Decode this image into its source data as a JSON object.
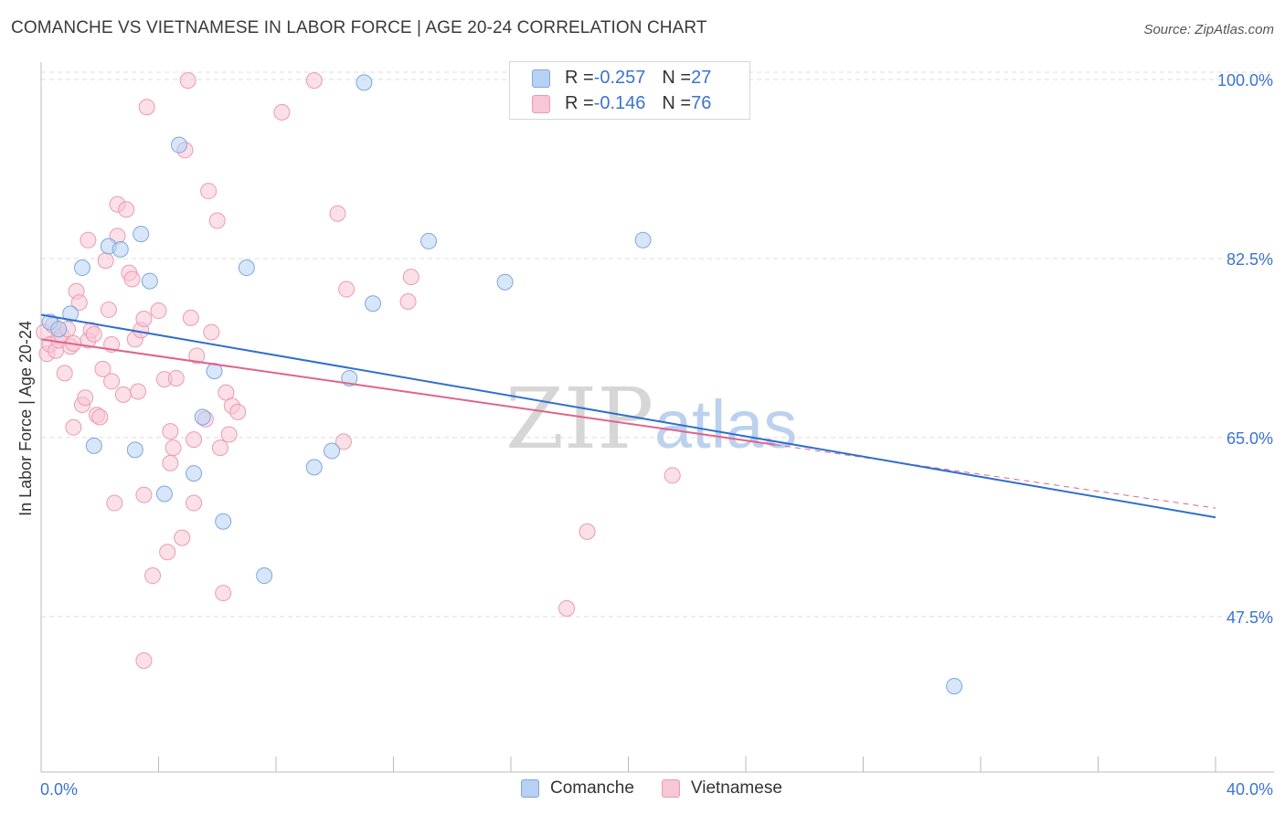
{
  "title": "COMANCHE VS VIETNAMESE IN LABOR FORCE | AGE 20-24 CORRELATION CHART",
  "source": "Source: ZipAtlas.com",
  "watermark": {
    "zip": "ZIP",
    "atlas": "atlas"
  },
  "colors": {
    "comanche_fill": "#b7d1f3",
    "comanche_stroke": "#7da7de",
    "comanche_line": "#2f6fce",
    "vietnamese_fill": "#f7c7d6",
    "vietnamese_stroke": "#eb9ab3",
    "vietnamese_line": "#e0638c",
    "axis_label": "#3a74d0",
    "grid": "#dcdcdc"
  },
  "legend_top": [
    {
      "r_label": "R = ",
      "r_value": "-0.257",
      "n_label": "N = ",
      "n_value": "27"
    },
    {
      "r_label": "R = ",
      "r_value": "-0.146",
      "n_label": "N = ",
      "n_value": "76"
    }
  ],
  "legend_bottom": [
    "Comanche",
    "Vietnamese"
  ],
  "chart_data": {
    "type": "scatter",
    "title": "COMANCHE VS VIETNAMESE IN LABOR FORCE | AGE 20-24 CORRELATION CHART",
    "xlabel": "",
    "ylabel": "In Labor Force | Age 20-24",
    "xlim": [
      0,
      40
    ],
    "ylim": [
      32.3,
      101.7
    ],
    "x_tick_labels": [
      "0.0%",
      "40.0%"
    ],
    "y_ticks": [
      47.5,
      65.0,
      82.5,
      100.0
    ],
    "y_tick_labels": [
      "47.5%",
      "65.0%",
      "82.5%",
      "100.0%"
    ],
    "grid": true,
    "legend_position": "top-center",
    "series": [
      {
        "name": "Comanche",
        "R": -0.257,
        "N": 27,
        "trend": {
          "x": [
            0,
            40
          ],
          "y": [
            77.0,
            57.2
          ]
        },
        "points": [
          [
            0.3,
            76.3
          ],
          [
            0.6,
            75.6
          ],
          [
            1.0,
            77.1
          ],
          [
            1.4,
            81.6
          ],
          [
            1.8,
            64.2
          ],
          [
            2.3,
            83.7
          ],
          [
            2.7,
            83.4
          ],
          [
            3.2,
            63.8
          ],
          [
            3.4,
            84.9
          ],
          [
            3.7,
            80.3
          ],
          [
            4.2,
            59.5
          ],
          [
            4.7,
            93.6
          ],
          [
            5.2,
            61.5
          ],
          [
            5.5,
            67.0
          ],
          [
            5.9,
            71.5
          ],
          [
            6.2,
            56.8
          ],
          [
            7.0,
            81.6
          ],
          [
            7.6,
            51.5
          ],
          [
            9.3,
            62.1
          ],
          [
            9.9,
            63.7
          ],
          [
            10.5,
            70.8
          ],
          [
            11.0,
            99.7
          ],
          [
            11.3,
            78.1
          ],
          [
            13.2,
            84.2
          ],
          [
            15.8,
            80.2
          ],
          [
            20.5,
            84.3
          ],
          [
            31.1,
            40.7
          ]
        ]
      },
      {
        "name": "Vietnamese",
        "R": -0.146,
        "N": 76,
        "trend": {
          "x": [
            0,
            25
          ],
          "y": [
            74.6,
            64.3
          ]
        },
        "trend_dashed": {
          "x": [
            25,
            40
          ],
          "y": [
            64.3,
            58.1
          ]
        },
        "points": [
          [
            0.1,
            75.3
          ],
          [
            0.2,
            73.2
          ],
          [
            0.3,
            74.1
          ],
          [
            0.4,
            76.0
          ],
          [
            0.5,
            73.5
          ],
          [
            0.6,
            74.5
          ],
          [
            0.7,
            75.0
          ],
          [
            0.8,
            71.3
          ],
          [
            0.9,
            75.6
          ],
          [
            1.0,
            73.9
          ],
          [
            1.1,
            74.2
          ],
          [
            1.1,
            66.0
          ],
          [
            1.2,
            79.3
          ],
          [
            1.3,
            78.2
          ],
          [
            1.4,
            68.2
          ],
          [
            1.5,
            68.9
          ],
          [
            1.6,
            74.5
          ],
          [
            1.6,
            84.3
          ],
          [
            1.7,
            75.5
          ],
          [
            1.8,
            75.1
          ],
          [
            1.9,
            67.2
          ],
          [
            2.0,
            67.0
          ],
          [
            2.1,
            71.7
          ],
          [
            2.2,
            82.3
          ],
          [
            2.3,
            77.5
          ],
          [
            2.4,
            74.1
          ],
          [
            2.4,
            70.5
          ],
          [
            2.5,
            58.6
          ],
          [
            2.6,
            84.7
          ],
          [
            2.6,
            87.8
          ],
          [
            2.8,
            69.2
          ],
          [
            2.9,
            87.3
          ],
          [
            3.0,
            81.1
          ],
          [
            3.1,
            80.5
          ],
          [
            3.2,
            74.6
          ],
          [
            3.3,
            69.5
          ],
          [
            3.4,
            75.5
          ],
          [
            3.5,
            76.6
          ],
          [
            3.5,
            59.4
          ],
          [
            3.6,
            97.3
          ],
          [
            3.8,
            51.5
          ],
          [
            4.0,
            77.4
          ],
          [
            4.2,
            70.7
          ],
          [
            4.3,
            53.8
          ],
          [
            4.4,
            65.6
          ],
          [
            4.4,
            62.5
          ],
          [
            4.5,
            64.0
          ],
          [
            4.6,
            70.8
          ],
          [
            4.8,
            55.2
          ],
          [
            4.9,
            93.1
          ],
          [
            5.0,
            99.9
          ],
          [
            5.1,
            76.7
          ],
          [
            5.2,
            64.8
          ],
          [
            5.2,
            58.6
          ],
          [
            5.3,
            73.0
          ],
          [
            5.6,
            66.8
          ],
          [
            5.7,
            89.1
          ],
          [
            5.8,
            75.3
          ],
          [
            6.0,
            86.2
          ],
          [
            6.1,
            64.0
          ],
          [
            6.2,
            49.8
          ],
          [
            6.3,
            69.4
          ],
          [
            6.4,
            65.3
          ],
          [
            6.5,
            68.1
          ],
          [
            6.7,
            67.5
          ],
          [
            8.2,
            96.8
          ],
          [
            9.3,
            99.9
          ],
          [
            10.1,
            86.9
          ],
          [
            10.3,
            64.6
          ],
          [
            10.4,
            79.5
          ],
          [
            12.5,
            78.3
          ],
          [
            12.6,
            80.7
          ],
          [
            17.9,
            48.3
          ],
          [
            18.6,
            55.8
          ],
          [
            21.5,
            61.3
          ],
          [
            3.5,
            43.2
          ]
        ]
      }
    ]
  }
}
